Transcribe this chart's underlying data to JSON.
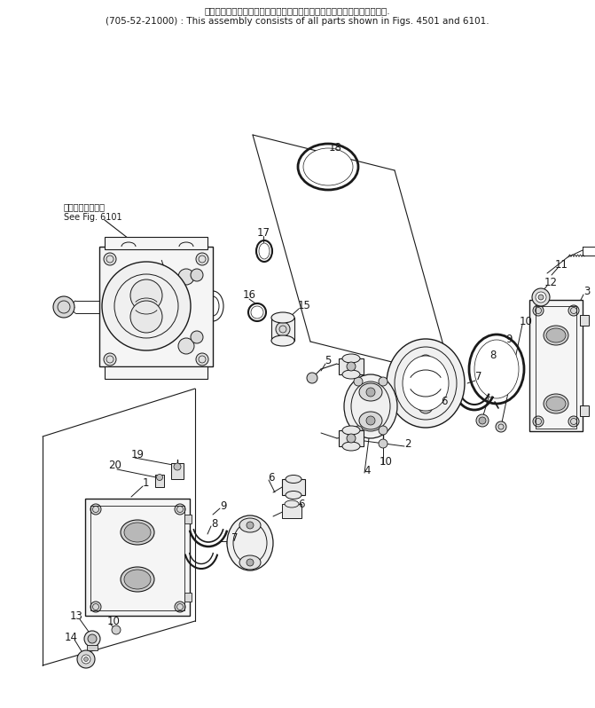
{
  "title_line1": "このアセンブリの構成部品は第４５０１図および第６１０１図を含みます.",
  "title_line2": "(705-52-21000) : This assembly consists of all parts shown in Figs. 4501 and 6101.",
  "see_fig_line1": "第６１０１図参照",
  "see_fig_line2": "See Fig. 6101",
  "bg_color": "#ffffff",
  "line_color": "#1a1a1a",
  "font_size_title": 7.5,
  "font_size_label": 8.5,
  "font_size_see": 7.0
}
